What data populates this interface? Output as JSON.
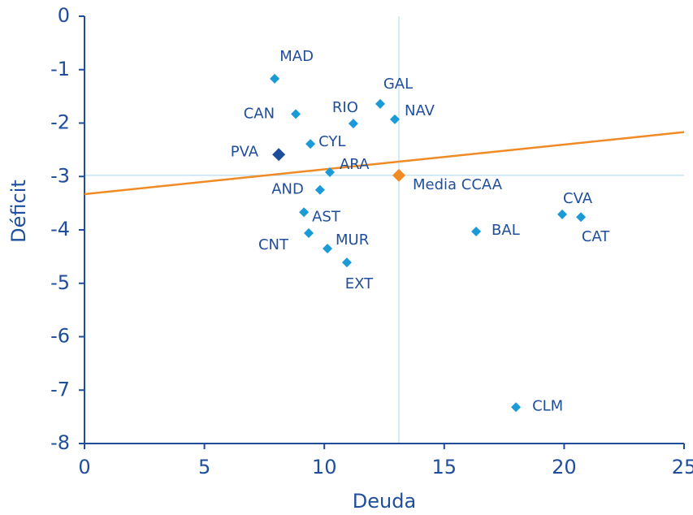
{
  "chart_data": {
    "type": "scatter",
    "xlabel": "Deuda",
    "ylabel": "Déficit",
    "xlim": [
      0,
      25
    ],
    "ylim": [
      -8,
      0
    ],
    "xticks": [
      0,
      5,
      10,
      15,
      20,
      25
    ],
    "yticks": [
      0,
      -1,
      -2,
      -3,
      -4,
      -5,
      -6,
      -7,
      -8
    ],
    "points": [
      {
        "label": "MAD",
        "x": 7.93,
        "y": -1.17,
        "color": "#1a9ad6"
      },
      {
        "label": "CAN",
        "x": 8.81,
        "y": -1.83,
        "color": "#1a9ad6"
      },
      {
        "label": "RIO",
        "x": 11.21,
        "y": -2.01,
        "color": "#1a9ad6"
      },
      {
        "label": "GAL",
        "x": 12.33,
        "y": -1.64,
        "color": "#1a9ad6"
      },
      {
        "label": "NAV",
        "x": 12.94,
        "y": -1.93,
        "color": "#1a9ad6"
      },
      {
        "label": "CYL",
        "x": 9.42,
        "y": -2.39,
        "color": "#1a9ad6"
      },
      {
        "label": "PVA",
        "x": 8.1,
        "y": -2.59,
        "color": "#1e4d9b"
      },
      {
        "label": "ARA",
        "x": 10.23,
        "y": -2.92,
        "color": "#1a9ad6"
      },
      {
        "label": "AND",
        "x": 9.82,
        "y": -3.25,
        "color": "#1a9ad6"
      },
      {
        "label": "Media CCAA",
        "x": 13.11,
        "y": -2.98,
        "color": "#f08a24",
        "crosshair": true
      },
      {
        "label": "AST",
        "x": 9.15,
        "y": -3.67,
        "color": "#1a9ad6"
      },
      {
        "label": "CNT",
        "x": 9.35,
        "y": -4.06,
        "color": "#1a9ad6"
      },
      {
        "label": "MUR",
        "x": 10.13,
        "y": -4.35,
        "color": "#1a9ad6"
      },
      {
        "label": "EXT",
        "x": 10.94,
        "y": -4.61,
        "color": "#1a9ad6"
      },
      {
        "label": "BAL",
        "x": 16.33,
        "y": -4.03,
        "color": "#1a9ad6"
      },
      {
        "label": "CVA",
        "x": 19.92,
        "y": -3.71,
        "color": "#1a9ad6"
      },
      {
        "label": "CAT",
        "x": 20.7,
        "y": -3.76,
        "color": "#1a9ad6"
      },
      {
        "label": "CLM",
        "x": 17.99,
        "y": -7.32,
        "color": "#1a9ad6"
      }
    ],
    "trendline": {
      "x": [
        0,
        25
      ],
      "y": [
        -3.33,
        -2.17
      ],
      "color": "#f08a24"
    }
  }
}
